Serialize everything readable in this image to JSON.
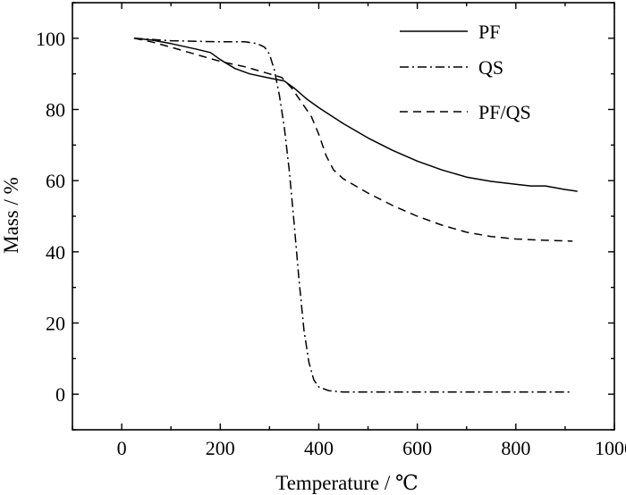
{
  "chart_data": {
    "type": "line",
    "xlabel": "Temperature / ℃",
    "ylabel": "Mass / %",
    "xlim": [
      -100,
      1000
    ],
    "ylim": [
      -10,
      110
    ],
    "x_ticks": [
      0,
      200,
      400,
      600,
      800,
      1000
    ],
    "y_ticks": [
      0,
      20,
      40,
      60,
      80,
      100
    ],
    "grid": false,
    "legend_position": "top-right",
    "series": [
      {
        "name": "PF",
        "style": "solid",
        "color": "#000000",
        "points": [
          [
            25,
            100
          ],
          [
            60,
            99.5
          ],
          [
            100,
            98.5
          ],
          [
            150,
            97
          ],
          [
            180,
            96
          ],
          [
            200,
            94
          ],
          [
            230,
            91.5
          ],
          [
            260,
            90
          ],
          [
            300,
            88.8
          ],
          [
            330,
            88
          ],
          [
            350,
            86
          ],
          [
            375,
            83
          ],
          [
            400,
            80.5
          ],
          [
            450,
            76
          ],
          [
            500,
            72
          ],
          [
            550,
            68.5
          ],
          [
            600,
            65.5
          ],
          [
            650,
            63
          ],
          [
            700,
            61
          ],
          [
            750,
            59.8
          ],
          [
            800,
            59
          ],
          [
            830,
            58.5
          ],
          [
            860,
            58.5
          ],
          [
            900,
            57.5
          ],
          [
            925,
            57
          ]
        ]
      },
      {
        "name": "QS",
        "style": "dashdot",
        "color": "#000000",
        "points": [
          [
            25,
            100
          ],
          [
            100,
            99.3
          ],
          [
            200,
            99
          ],
          [
            250,
            99
          ],
          [
            275,
            98.5
          ],
          [
            290,
            97.5
          ],
          [
            300,
            95.5
          ],
          [
            310,
            91
          ],
          [
            320,
            84
          ],
          [
            330,
            75
          ],
          [
            340,
            63
          ],
          [
            350,
            48
          ],
          [
            360,
            32
          ],
          [
            370,
            18
          ],
          [
            380,
            9
          ],
          [
            390,
            4
          ],
          [
            400,
            2
          ],
          [
            420,
            1
          ],
          [
            450,
            0.6
          ],
          [
            600,
            0.6
          ],
          [
            800,
            0.6
          ],
          [
            910,
            0.6
          ]
        ]
      },
      {
        "name": "PF/QS",
        "style": "dashed",
        "color": "#000000",
        "points": [
          [
            25,
            100
          ],
          [
            60,
            99
          ],
          [
            100,
            97.5
          ],
          [
            150,
            95.5
          ],
          [
            200,
            93.5
          ],
          [
            250,
            92
          ],
          [
            300,
            90
          ],
          [
            325,
            89
          ],
          [
            345,
            86
          ],
          [
            365,
            82
          ],
          [
            385,
            78
          ],
          [
            400,
            73
          ],
          [
            415,
            67
          ],
          [
            430,
            63
          ],
          [
            450,
            60.5
          ],
          [
            500,
            56.5
          ],
          [
            550,
            53
          ],
          [
            600,
            50
          ],
          [
            650,
            47.5
          ],
          [
            700,
            45.5
          ],
          [
            750,
            44.3
          ],
          [
            800,
            43.6
          ],
          [
            850,
            43.3
          ],
          [
            915,
            43
          ]
        ]
      }
    ]
  }
}
